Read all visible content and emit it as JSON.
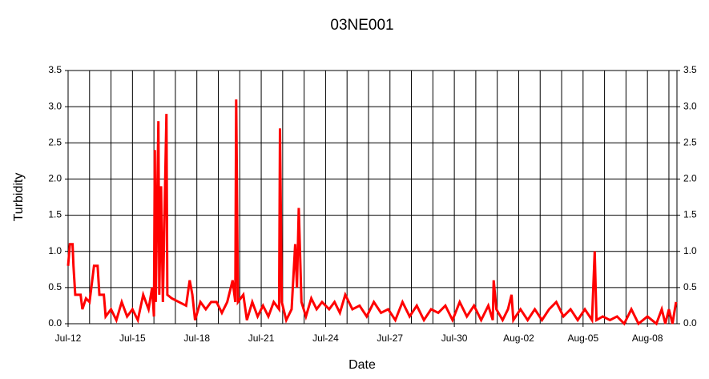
{
  "chart_data": {
    "type": "line",
    "title": "03NE001",
    "xlabel": "Date",
    "ylabel": "Turbidity",
    "xlim": [
      "07-12T00",
      "08-09T09"
    ],
    "xticks": [
      {
        "value": "07-12T00",
        "label": "Jul-12"
      },
      {
        "value": "07-15T00",
        "label": "Jul-15"
      },
      {
        "value": "07-18T00",
        "label": "Jul-18"
      },
      {
        "value": "07-21T00",
        "label": "Jul-21"
      },
      {
        "value": "07-24T00",
        "label": "Jul-24"
      },
      {
        "value": "07-27T00",
        "label": "Jul-27"
      },
      {
        "value": "07-30T00",
        "label": "Jul-30"
      },
      {
        "value": "08-02T00",
        "label": "Aug-02"
      },
      {
        "value": "08-05T00",
        "label": "Aug-05"
      },
      {
        "value": "08-08T00",
        "label": "Aug-08"
      }
    ],
    "xgrid": [
      "07-12T00",
      "07-13T00",
      "07-14T00",
      "07-15T00",
      "07-16T00",
      "07-17T00",
      "07-18T00",
      "07-19T00",
      "07-20T00",
      "07-21T00",
      "07-22T00",
      "07-23T00",
      "07-24T00",
      "07-25T00",
      "07-26T00",
      "07-27T00",
      "07-28T00",
      "07-29T00",
      "07-30T00",
      "07-31T00",
      "08-01T00",
      "08-02T00",
      "08-03T00",
      "08-04T00",
      "08-05T00",
      "08-06T00",
      "08-07T00",
      "08-08T00",
      "08-09T00"
    ],
    "ylim": [
      0,
      3.5
    ],
    "yticks": [
      {
        "value": 0,
        "label": "0.0"
      },
      0.5,
      {
        "value": 1,
        "label": "1.0"
      },
      1.5,
      {
        "value": 2,
        "label": "2.0"
      },
      2.5,
      {
        "value": 3,
        "label": "3.0"
      },
      3.5
    ],
    "y2lim": [
      0,
      3.5
    ],
    "y2ticks": [
      {
        "value": 0,
        "label": "0.0"
      },
      0.5,
      {
        "value": 1,
        "label": "1.0"
      },
      1.5,
      {
        "value": 2,
        "label": "2.0"
      },
      2.5,
      {
        "value": 3,
        "label": "3.0"
      },
      3.5
    ],
    "grid": true,
    "x": [
      "07-12T00",
      "07-12T02",
      "07-12T05",
      "07-12T06",
      "07-12T08",
      "07-12T14",
      "07-12T16",
      "07-12T20",
      "07-13T00",
      "07-13T03",
      "07-13T05",
      "07-13T09",
      "07-13T11",
      "07-13T16",
      "07-13T18",
      "07-14T00",
      "07-14T06",
      "07-14T12",
      "07-14T18",
      "07-15T00",
      "07-15T06",
      "07-15T12",
      "07-15T18",
      "07-15T22",
      "07-16T00",
      "07-16T01",
      "07-16T02",
      "07-16T05",
      "07-16T06",
      "07-16T08",
      "07-16T10",
      "07-16T14",
      "07-16T15",
      "07-16T20",
      "07-17T04",
      "07-17T12",
      "07-17T16",
      "07-17T19",
      "07-17T22",
      "07-18T04",
      "07-18T10",
      "07-18T16",
      "07-18T22",
      "07-19T04",
      "07-19T10",
      "07-19T16",
      "07-19T19",
      "07-19T20",
      "07-19T22",
      "07-20T04",
      "07-20T08",
      "07-20T14",
      "07-20T20",
      "07-21T02",
      "07-21T08",
      "07-21T14",
      "07-21T20",
      "07-21T21",
      "07-21T23",
      "07-22T04",
      "07-22T10",
      "07-22T14",
      "07-22T16",
      "07-22T18",
      "07-22T21",
      "07-23T02",
      "07-23T08",
      "07-23T14",
      "07-23T20",
      "07-24T04",
      "07-24T10",
      "07-24T16",
      "07-24T22",
      "07-25T06",
      "07-25T14",
      "07-25T22",
      "07-26T06",
      "07-26T14",
      "07-26T22",
      "07-27T06",
      "07-27T14",
      "07-27T22",
      "07-28T06",
      "07-28T14",
      "07-28T22",
      "07-29T06",
      "07-29T14",
      "07-29T22",
      "07-30T06",
      "07-30T14",
      "07-30T22",
      "07-31T06",
      "07-31T14",
      "07-31T19",
      "07-31T20",
      "07-31T23",
      "08-01T06",
      "08-01T12",
      "08-01T16",
      "08-01T18",
      "08-02T02",
      "08-02T10",
      "08-02T18",
      "08-03T02",
      "08-03T10",
      "08-03T18",
      "08-04T02",
      "08-04T10",
      "08-04T18",
      "08-05T02",
      "08-05T10",
      "08-05T13",
      "08-05T15",
      "08-05T22",
      "08-06T06",
      "08-06T14",
      "08-06T22",
      "08-07T06",
      "08-07T14",
      "08-08T00",
      "08-08T10",
      "08-08T16",
      "08-08T20",
      "08-09T00",
      "08-09T04",
      "08-09T08"
    ],
    "series": [
      {
        "color": "#ff0000",
        "values": [
          0.8,
          1.1,
          1.1,
          0.8,
          0.4,
          0.4,
          0.2,
          0.35,
          0.3,
          0.6,
          0.8,
          0.8,
          0.4,
          0.4,
          0.1,
          0.2,
          0.05,
          0.3,
          0.1,
          0.2,
          0.05,
          0.4,
          0.2,
          0.5,
          0.1,
          2.4,
          0.3,
          2.8,
          0.4,
          1.9,
          0.3,
          2.9,
          0.4,
          0.35,
          0.3,
          0.25,
          0.6,
          0.4,
          0.05,
          0.3,
          0.2,
          0.3,
          0.3,
          0.15,
          0.3,
          0.6,
          0.3,
          3.1,
          0.3,
          0.4,
          0.05,
          0.3,
          0.1,
          0.25,
          0.1,
          0.3,
          0.2,
          2.7,
          0.3,
          0.05,
          0.2,
          1.1,
          0.5,
          1.6,
          0.3,
          0.1,
          0.35,
          0.2,
          0.3,
          0.2,
          0.3,
          0.15,
          0.4,
          0.2,
          0.25,
          0.1,
          0.3,
          0.15,
          0.2,
          0.05,
          0.3,
          0.1,
          0.25,
          0.05,
          0.2,
          0.15,
          0.25,
          0.05,
          0.3,
          0.1,
          0.25,
          0.05,
          0.25,
          0.05,
          0.6,
          0.2,
          0.05,
          0.2,
          0.4,
          0.05,
          0.2,
          0.05,
          0.2,
          0.05,
          0.2,
          0.3,
          0.1,
          0.2,
          0.05,
          0.2,
          0.05,
          1.0,
          0.05,
          0.1,
          0.05,
          0.1,
          0,
          0.2,
          0,
          0.1,
          0,
          0.2,
          0,
          0.2,
          0,
          0.3
        ]
      }
    ]
  }
}
